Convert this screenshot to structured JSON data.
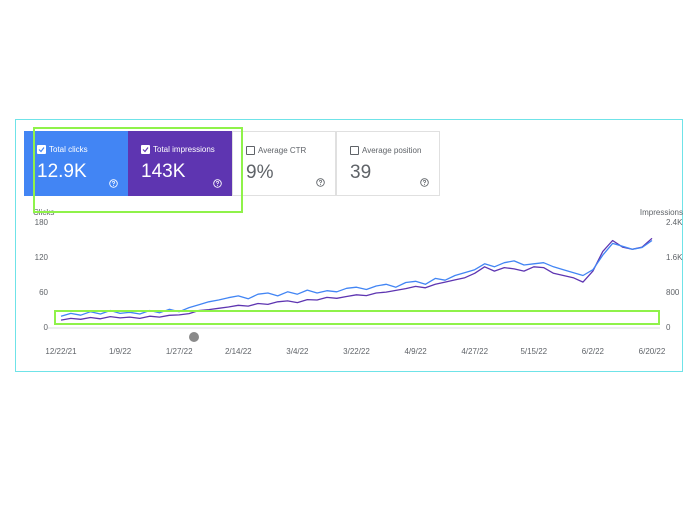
{
  "cards": [
    {
      "label": "Total clicks",
      "value": "12.9K",
      "checked": true,
      "color": "#4285f4"
    },
    {
      "label": "Total impressions",
      "value": "143K",
      "checked": true,
      "color": "#5e35b1"
    },
    {
      "label": "Average CTR",
      "value": "9%",
      "checked": false
    },
    {
      "label": "Average position",
      "value": "39",
      "checked": false
    }
  ],
  "chart_data": {
    "type": "line",
    "y_label": "Clicks",
    "y2_label": "Impressions",
    "categories": [
      "12/22/21",
      null,
      null,
      null,
      null,
      null,
      "1/9/22",
      null,
      null,
      null,
      null,
      null,
      "1/27/22",
      null,
      null,
      null,
      null,
      null,
      "2/14/22",
      null,
      null,
      null,
      null,
      null,
      "3/4/22",
      null,
      null,
      null,
      null,
      null,
      "3/22/22",
      null,
      null,
      null,
      null,
      null,
      "4/9/22",
      null,
      null,
      null,
      null,
      null,
      "4/27/22",
      null,
      null,
      null,
      null,
      null,
      "5/15/22",
      null,
      null,
      null,
      null,
      null,
      "6/2/22",
      null,
      null,
      null,
      null,
      null,
      "6/20/22"
    ],
    "ylim": [
      0,
      180
    ],
    "yticks": [
      0,
      60,
      120,
      180
    ],
    "y2lim": [
      0,
      2400
    ],
    "y2ticks": [
      0,
      800,
      {
        "value": 1600,
        "label": "1.6K"
      },
      {
        "value": 2400,
        "label": "2.4K"
      }
    ],
    "grid": false,
    "series": [
      {
        "name": "Clicks",
        "color": "#4285f4",
        "values": [
          20,
          25,
          22,
          28,
          24,
          30,
          25,
          27,
          24,
          30,
          26,
          32,
          28,
          35,
          40,
          45,
          48,
          52,
          55,
          50,
          58,
          60,
          55,
          62,
          58,
          65,
          60,
          64,
          62,
          68,
          70,
          66,
          72,
          75,
          70,
          78,
          80,
          75,
          85,
          82,
          90,
          95,
          100,
          110,
          105,
          112,
          115,
          108,
          110,
          112,
          105,
          100,
          95,
          90,
          100,
          125,
          145,
          140,
          135,
          138,
          150
        ]
      },
      {
        "name": "Impressions",
        "color": "#5e35b1",
        "axis": "y2",
        "values": [
          180,
          220,
          200,
          240,
          210,
          260,
          230,
          250,
          220,
          270,
          250,
          290,
          300,
          330,
          400,
          420,
          450,
          480,
          520,
          500,
          560,
          540,
          600,
          620,
          580,
          650,
          640,
          700,
          680,
          720,
          760,
          740,
          800,
          820,
          860,
          900,
          950,
          920,
          1000,
          1050,
          1100,
          1150,
          1250,
          1400,
          1300,
          1380,
          1350,
          1300,
          1400,
          1380,
          1250,
          1200,
          1150,
          1050,
          1300,
          1750,
          2000,
          1850,
          1800,
          1850,
          2050
        ]
      }
    ]
  }
}
